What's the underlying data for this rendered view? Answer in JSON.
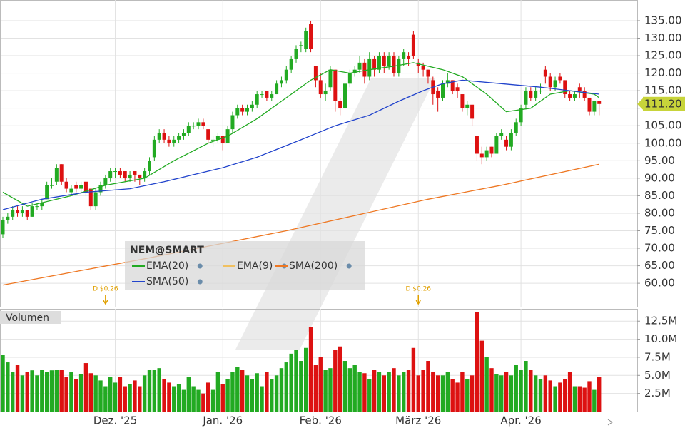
{
  "chart_data": {
    "type": "candlestick",
    "legend_title": "NEM@SMART",
    "panel_title": "Volumen",
    "categories": [
      null,
      null,
      null,
      null,
      null,
      null,
      null,
      null,
      null,
      null,
      null,
      null,
      null,
      null,
      null,
      null,
      null,
      null,
      null,
      null,
      null,
      null,
      null,
      "Dez. '25",
      null,
      null,
      null,
      null,
      null,
      null,
      null,
      null,
      null,
      null,
      null,
      null,
      null,
      null,
      null,
      null,
      null,
      null,
      null,
      null,
      null,
      "Jan. '26",
      null,
      null,
      null,
      null,
      null,
      null,
      null,
      null,
      null,
      null,
      null,
      null,
      null,
      null,
      null,
      null,
      null,
      null,
      null,
      "Feb. '26",
      null,
      null,
      null,
      null,
      null,
      null,
      null,
      null,
      null,
      null,
      null,
      null,
      null,
      null,
      null,
      null,
      null,
      null,
      null,
      "März '26",
      null,
      null,
      null,
      null,
      null,
      null,
      null,
      null,
      null,
      null,
      null,
      null,
      null,
      null,
      null,
      null,
      null,
      null,
      null,
      null,
      "Apr. '26",
      null,
      null,
      null,
      null,
      null,
      null,
      null,
      null,
      null,
      null,
      null,
      null,
      null,
      null,
      null,
      null
    ],
    "candles": [
      [
        74,
        79,
        73,
        78
      ],
      [
        78,
        80,
        77,
        79
      ],
      [
        79,
        82,
        78,
        81
      ],
      [
        81,
        82,
        79,
        80
      ],
      [
        80,
        82,
        79,
        81
      ],
      [
        81,
        81,
        78,
        79
      ],
      [
        79,
        83,
        79,
        82
      ],
      [
        82,
        83,
        81,
        82
      ],
      [
        82,
        84,
        81,
        83
      ],
      [
        84,
        89,
        84,
        88
      ],
      [
        88,
        90,
        87,
        88
      ],
      [
        89,
        94,
        88,
        93
      ],
      [
        94,
        94,
        88,
        89
      ],
      [
        89,
        90,
        86,
        87
      ],
      [
        86,
        88,
        85,
        87
      ],
      [
        88,
        89,
        86,
        87
      ],
      [
        87,
        89,
        86,
        88
      ],
      [
        89,
        89,
        85,
        86
      ],
      [
        87,
        87,
        81,
        82
      ],
      [
        82,
        87,
        81,
        86
      ],
      [
        86,
        89,
        85,
        88
      ],
      [
        88,
        91,
        87,
        90
      ],
      [
        90,
        93,
        89,
        92
      ],
      [
        92,
        93,
        90,
        92
      ],
      [
        92,
        93,
        90,
        91
      ],
      [
        92,
        92,
        89,
        90
      ],
      [
        90,
        92,
        89,
        91
      ],
      [
        92,
        92,
        89,
        91
      ],
      [
        91,
        91,
        88,
        90
      ],
      [
        90,
        93,
        89,
        92
      ],
      [
        92,
        96,
        91,
        95
      ],
      [
        96,
        102,
        95,
        101
      ],
      [
        101,
        104,
        100,
        103
      ],
      [
        103,
        104,
        100,
        101
      ],
      [
        101,
        102,
        99,
        100
      ],
      [
        100,
        102,
        99,
        101
      ],
      [
        101,
        103,
        100,
        102
      ],
      [
        102,
        104,
        101,
        103
      ],
      [
        103,
        106,
        102,
        105
      ],
      [
        105,
        106,
        104,
        105
      ],
      [
        105,
        107,
        104,
        106
      ],
      [
        106,
        107,
        104,
        105
      ],
      [
        104,
        104,
        100,
        101
      ],
      [
        101,
        102,
        99,
        101
      ],
      [
        101,
        103,
        100,
        102
      ],
      [
        102,
        102,
        98,
        100
      ],
      [
        100,
        105,
        100,
        104
      ],
      [
        104,
        109,
        103,
        108
      ],
      [
        108,
        111,
        107,
        110
      ],
      [
        110,
        111,
        108,
        109
      ],
      [
        109,
        111,
        108,
        110
      ],
      [
        110,
        112,
        109,
        111
      ],
      [
        111,
        115,
        110,
        114
      ],
      [
        114,
        115,
        113,
        114
      ],
      [
        115,
        115,
        112,
        113
      ],
      [
        113,
        115,
        112,
        114
      ],
      [
        114,
        118,
        114,
        117
      ],
      [
        117,
        119,
        116,
        118
      ],
      [
        118,
        122,
        117,
        121
      ],
      [
        121,
        125,
        120,
        124
      ],
      [
        124,
        128,
        123,
        127
      ],
      [
        128,
        129,
        126,
        128
      ],
      [
        127,
        133,
        126,
        132
      ],
      [
        134,
        135,
        126,
        127
      ],
      [
        122,
        122,
        116,
        118
      ],
      [
        118,
        120,
        113,
        114
      ],
      [
        114,
        117,
        112,
        115
      ],
      [
        116,
        122,
        115,
        121
      ],
      [
        121,
        121,
        109,
        112
      ],
      [
        112,
        113,
        108,
        110
      ],
      [
        110,
        118,
        110,
        117
      ],
      [
        117,
        121,
        116,
        120
      ],
      [
        120,
        122,
        119,
        121
      ],
      [
        121,
        125,
        120,
        123
      ],
      [
        123,
        124,
        117,
        119
      ],
      [
        119,
        126,
        118,
        124
      ],
      [
        124,
        125,
        119,
        121
      ],
      [
        121,
        126,
        120,
        125
      ],
      [
        125,
        126,
        120,
        122
      ],
      [
        122,
        126,
        121,
        125
      ],
      [
        125,
        126,
        119,
        120
      ],
      [
        120,
        125,
        119,
        124
      ],
      [
        124,
        127,
        122,
        126
      ],
      [
        125,
        126,
        122,
        124
      ],
      [
        131,
        132,
        124,
        125
      ],
      [
        123,
        124,
        120,
        122
      ],
      [
        122,
        123,
        119,
        121
      ],
      [
        121,
        121,
        117,
        119
      ],
      [
        118,
        119,
        111,
        114
      ],
      [
        115,
        116,
        109,
        113
      ],
      [
        113,
        118,
        112,
        117
      ],
      [
        117,
        120,
        116,
        118
      ],
      [
        118,
        118,
        114,
        115
      ],
      [
        116,
        117,
        113,
        115
      ],
      [
        114,
        114,
        109,
        110
      ],
      [
        110,
        112,
        108,
        111
      ],
      [
        111,
        111,
        105,
        107
      ],
      [
        102,
        102,
        95,
        97
      ],
      [
        97,
        99,
        94,
        96
      ],
      [
        96,
        99,
        95,
        98
      ],
      [
        99,
        99,
        96,
        97
      ],
      [
        97,
        103,
        97,
        102
      ],
      [
        102,
        104,
        101,
        103
      ],
      [
        101,
        102,
        98,
        99
      ],
      [
        99,
        104,
        98,
        103
      ],
      [
        103,
        107,
        102,
        106
      ],
      [
        106,
        111,
        105,
        110
      ],
      [
        111,
        116,
        110,
        115
      ],
      [
        115,
        116,
        112,
        113
      ],
      [
        113,
        116,
        112,
        115
      ],
      [
        115,
        117,
        114,
        115
      ],
      [
        121,
        122,
        117,
        119
      ],
      [
        119,
        120,
        115,
        116
      ],
      [
        116,
        119,
        115,
        118
      ],
      [
        119,
        120,
        117,
        118
      ],
      [
        118,
        118,
        113,
        114
      ],
      [
        114,
        115,
        112,
        113
      ],
      [
        113,
        115,
        112,
        114
      ],
      [
        116,
        117,
        113,
        115
      ],
      [
        115,
        116,
        112,
        113
      ],
      [
        113,
        113,
        108,
        109
      ],
      [
        109,
        112,
        108,
        112
      ],
      [
        112,
        112,
        108,
        111.2
      ]
    ],
    "up_color": "#22aa22",
    "down_color": "#dd1111",
    "volume": [
      7.8,
      6.8,
      5.5,
      6.5,
      5.0,
      5.5,
      5.7,
      5.0,
      5.8,
      5.5,
      5.7,
      5.8,
      5.8,
      4.8,
      5.5,
      4.5,
      5.2,
      6.7,
      5.3,
      5.0,
      4.3,
      3.5,
      4.8,
      4.0,
      4.8,
      3.5,
      3.8,
      4.3,
      3.5,
      5.0,
      5.8,
      5.8,
      6.0,
      4.5,
      4.0,
      3.5,
      3.8,
      3.0,
      4.8,
      3.5,
      3.0,
      2.5,
      4.0,
      3.0,
      5.5,
      3.8,
      4.5,
      5.5,
      6.2,
      5.8,
      5.0,
      4.5,
      5.3,
      3.5,
      5.5,
      4.5,
      5.0,
      6.0,
      6.8,
      8.0,
      8.5,
      7.0,
      8.8,
      11.7,
      6.5,
      7.5,
      5.8,
      6.0,
      8.5,
      9.0,
      7.0,
      6.0,
      6.5,
      5.5,
      5.3,
      4.5,
      5.8,
      5.5,
      5.0,
      5.5,
      6.0,
      5.0,
      5.5,
      5.8,
      8.8,
      5.0,
      5.8,
      7.0,
      5.5,
      5.0,
      5.0,
      5.5,
      4.5,
      4.0,
      5.5,
      4.5,
      5.0,
      13.8,
      9.8,
      7.5,
      6.0,
      5.2,
      5.0,
      5.5,
      5.0,
      6.5,
      5.8,
      7.0,
      5.8,
      5.0,
      4.5,
      5.0,
      4.3,
      3.5,
      4.0,
      4.5,
      5.5,
      3.5,
      3.5,
      3.3,
      4.2,
      3.0,
      4.8
    ],
    "series": [
      {
        "name": "EMA(20)",
        "color": "#22aa22",
        "x": [
          0,
          5,
          14,
          21,
          29,
          35,
          42,
          46,
          52,
          58,
          63,
          67,
          71,
          75,
          80,
          84,
          90,
          94,
          99,
          103,
          108,
          112,
          116,
          121,
          122
        ],
        "values": [
          86,
          82,
          85,
          88,
          90,
          95,
          100,
          102,
          107,
          113,
          118,
          121,
          120,
          121,
          122,
          123,
          121,
          119,
          114,
          109,
          110,
          114,
          115,
          114,
          113
        ]
      },
      {
        "name": "EMA(9)",
        "color": "#f0c060"
      },
      {
        "name": "SMA(200)",
        "color": "#ee7722",
        "x": [
          0,
          29,
          58,
          87,
          102,
          122
        ],
        "values": [
          59.5,
          67,
          75,
          84,
          88,
          94
        ]
      },
      {
        "name": "SMA(50)",
        "color": "#2244cc",
        "x": [
          0,
          8,
          17,
          26,
          33,
          39,
          45,
          52,
          61,
          68,
          75,
          81,
          86,
          90,
          94,
          102,
          110,
          116,
          122
        ],
        "values": [
          81,
          84,
          86,
          87,
          89,
          91,
          93,
          96,
          101,
          105,
          108,
          112,
          115,
          117,
          118,
          117,
          116,
          115,
          114
        ]
      }
    ],
    "ylim": [
      53.3,
      140.9
    ],
    "yticks": [
      {
        "value": 60,
        "label": "60.00"
      },
      {
        "value": 65,
        "label": "65.00"
      },
      {
        "value": 70,
        "label": "70.00"
      },
      {
        "value": 75,
        "label": "75.00"
      },
      {
        "value": 80,
        "label": "80.00"
      },
      {
        "value": 85,
        "label": "85.00"
      },
      {
        "value": 90,
        "label": "90.00"
      },
      {
        "value": 95,
        "label": "95.00"
      },
      {
        "value": 100,
        "label": "100.00"
      },
      {
        "value": 105,
        "label": "105.00"
      },
      {
        "value": 110,
        "label": "110.00"
      },
      {
        "value": 115,
        "label": "115.00"
      },
      {
        "value": 120,
        "label": "120.00"
      },
      {
        "value": 125,
        "label": "125.00"
      },
      {
        "value": 130,
        "label": "130.00"
      },
      {
        "value": 135,
        "label": "135.00"
      }
    ],
    "y2lim": [
      0,
      14.2
    ],
    "y2ticks": [
      {
        "value": 2.5,
        "label": "2.5M"
      },
      {
        "value": 5,
        "label": "5.0M"
      },
      {
        "value": 7.5,
        "label": "7.5M"
      },
      {
        "value": 10,
        "label": "10.0M"
      },
      {
        "value": 12.5,
        "label": "12.5M"
      }
    ],
    "last_price": {
      "value": 111.2,
      "label": "111.20"
    },
    "annotations": [
      {
        "x": 21,
        "label": "D $0.26"
      },
      {
        "x": 85,
        "label": "D $0.26"
      }
    ],
    "grid": true
  }
}
